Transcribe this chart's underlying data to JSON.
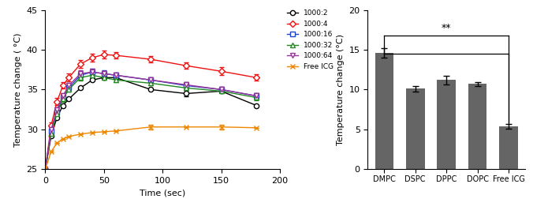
{
  "left_xlabel": "Time (sec)",
  "left_ylabel": "Temperature change ( °C)",
  "left_xlim": [
    0,
    200
  ],
  "left_ylim": [
    25,
    45
  ],
  "left_yticks": [
    25,
    30,
    35,
    40,
    45
  ],
  "left_xticks": [
    0,
    50,
    100,
    150,
    200
  ],
  "right_ylabel": "Temperature change (°C)",
  "right_ylim": [
    0,
    20
  ],
  "right_yticks": [
    0,
    5,
    10,
    15,
    20
  ],
  "bar_categories": [
    "DMPC",
    "DSPC",
    "DPPC",
    "DOPC",
    "Free ICG"
  ],
  "bar_values": [
    14.6,
    10.1,
    11.2,
    10.7,
    5.35
  ],
  "bar_errors": [
    0.6,
    0.35,
    0.55,
    0.25,
    0.3
  ],
  "bar_color": "#656565",
  "series": {
    "1000:2": {
      "color": "#000000",
      "marker": "o",
      "times": [
        0,
        5,
        10,
        15,
        20,
        30,
        40,
        50,
        60,
        90,
        120,
        150,
        180
      ],
      "values": [
        25.0,
        29.2,
        31.5,
        33.0,
        33.8,
        35.2,
        36.2,
        36.5,
        36.5,
        35.0,
        34.5,
        34.8,
        33.0
      ],
      "errors": [
        0.0,
        0.0,
        0.0,
        0.0,
        0.0,
        0.0,
        0.0,
        0.0,
        0.0,
        0.0,
        0.4,
        0.0,
        0.0
      ]
    },
    "1000:4": {
      "color": "#ee1111",
      "marker": "D",
      "times": [
        0,
        5,
        10,
        15,
        20,
        30,
        40,
        50,
        60,
        90,
        120,
        150,
        180
      ],
      "values": [
        25.0,
        30.5,
        33.5,
        35.5,
        36.5,
        38.2,
        39.0,
        39.4,
        39.3,
        38.8,
        38.0,
        37.3,
        36.5
      ],
      "errors": [
        0.0,
        0.4,
        0.4,
        0.4,
        0.5,
        0.5,
        0.5,
        0.5,
        0.4,
        0.4,
        0.4,
        0.5,
        0.4
      ]
    },
    "1000:16": {
      "color": "#2244cc",
      "marker": "s",
      "times": [
        0,
        5,
        10,
        15,
        20,
        30,
        40,
        50,
        60,
        90,
        120,
        150,
        180
      ],
      "values": [
        25.0,
        29.8,
        32.2,
        34.0,
        35.2,
        36.8,
        37.2,
        37.0,
        36.8,
        36.2,
        35.5,
        35.0,
        34.2
      ],
      "errors": [
        0.0,
        0.3,
        0.3,
        0.3,
        0.3,
        0.4,
        0.4,
        0.4,
        0.3,
        0.3,
        0.4,
        0.3,
        0.3
      ]
    },
    "1000:32": {
      "color": "#228822",
      "marker": "^",
      "times": [
        0,
        5,
        10,
        15,
        20,
        30,
        40,
        50,
        60,
        90,
        120,
        150,
        180
      ],
      "values": [
        25.0,
        29.5,
        32.0,
        33.8,
        35.0,
        36.5,
        36.8,
        36.5,
        36.2,
        35.8,
        35.2,
        34.8,
        34.0
      ],
      "errors": [
        0.0,
        0.3,
        0.3,
        0.3,
        0.3,
        0.4,
        0.4,
        0.3,
        0.3,
        0.3,
        0.3,
        0.3,
        0.3
      ]
    },
    "1000:64": {
      "color": "#993399",
      "marker": "v",
      "times": [
        0,
        5,
        10,
        15,
        20,
        30,
        40,
        50,
        60,
        90,
        120,
        150,
        180
      ],
      "values": [
        25.0,
        30.0,
        32.5,
        34.2,
        35.5,
        37.0,
        37.2,
        37.0,
        36.8,
        36.2,
        35.6,
        35.0,
        34.2
      ],
      "errors": [
        0.0,
        0.3,
        0.3,
        0.3,
        0.3,
        0.4,
        0.4,
        0.3,
        0.3,
        0.3,
        0.3,
        0.3,
        0.3
      ]
    },
    "Free ICG": {
      "color": "#ee8800",
      "marker": "x",
      "times": [
        0,
        5,
        10,
        15,
        20,
        30,
        40,
        50,
        60,
        90,
        120,
        150,
        180
      ],
      "values": [
        25.0,
        27.2,
        28.3,
        28.8,
        29.1,
        29.4,
        29.6,
        29.7,
        29.8,
        30.3,
        30.3,
        30.3,
        30.2
      ],
      "errors": [
        0.0,
        0.0,
        0.0,
        0.0,
        0.0,
        0.0,
        0.0,
        0.0,
        0.0,
        0.3,
        0.0,
        0.3,
        0.0
      ]
    }
  },
  "series_order": [
    "1000:2",
    "1000:4",
    "1000:16",
    "1000:32",
    "1000:64",
    "Free ICG"
  ],
  "legend_markers": {
    "1000:2": "o",
    "1000:4": "D",
    "1000:16": "s",
    "1000:32": "^",
    "1000:64": "v",
    "Free ICG": "x"
  }
}
